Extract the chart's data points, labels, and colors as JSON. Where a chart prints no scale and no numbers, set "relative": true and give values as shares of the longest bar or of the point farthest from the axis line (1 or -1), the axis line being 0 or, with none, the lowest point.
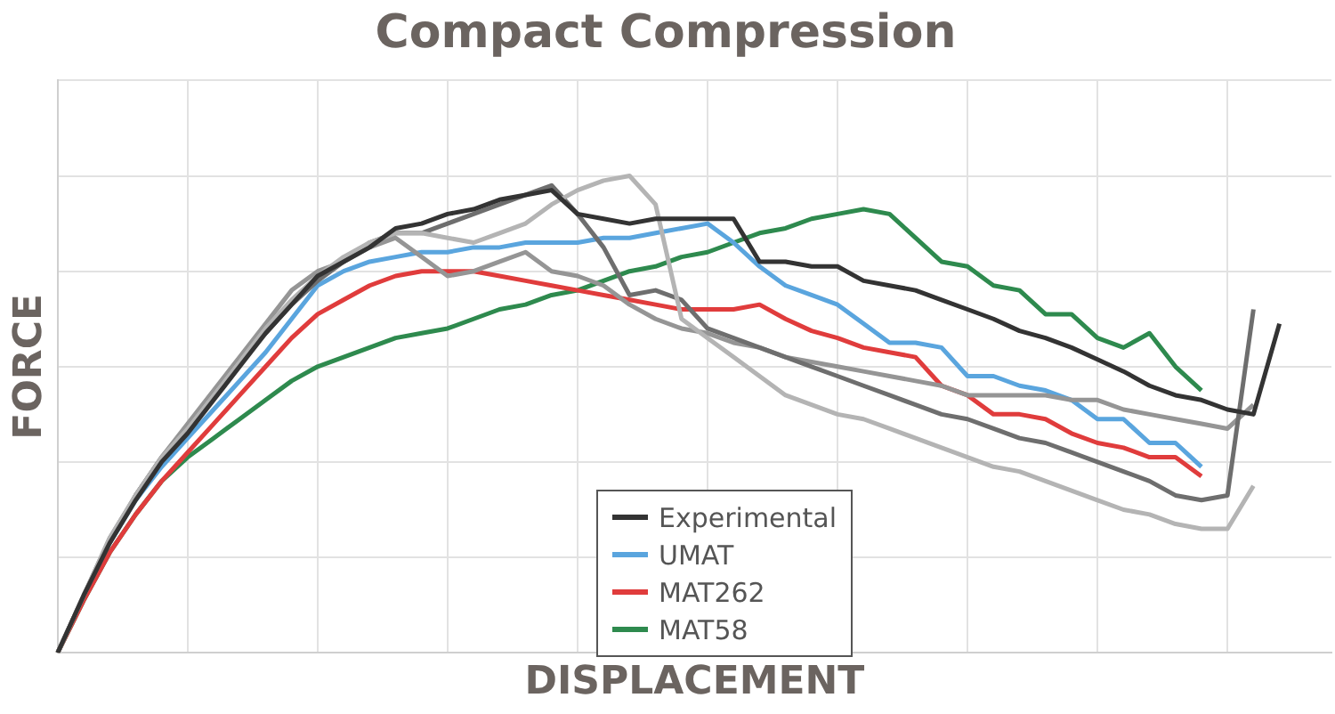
{
  "chart_data": {
    "type": "line",
    "title": "Compact Compression",
    "xlabel": "DISPLACEMENT",
    "ylabel": "FORCE",
    "relative": true,
    "grid": true,
    "legend": "bottom",
    "marker": "none",
    "line_style": "solid",
    "categories": [
      null,
      null,
      null,
      null,
      null,
      null,
      null,
      null,
      null,
      null,
      null,
      null,
      null,
      null,
      null,
      null,
      null,
      null,
      null,
      null,
      null,
      null,
      null,
      null,
      null,
      null,
      null,
      null,
      null,
      null,
      null,
      null,
      null,
      null,
      null,
      null,
      null,
      null,
      null,
      null,
      null,
      null,
      null,
      null,
      null,
      null,
      null,
      null,
      null,
      null
    ],
    "series": [
      {
        "name": "Experimental",
        "color": "#333333",
        "values": [
          0,
          0.12,
          0.23,
          0.32,
          0.4,
          0.46,
          0.53,
          0.6,
          0.67,
          0.73,
          0.79,
          0.82,
          0.85,
          0.89,
          0.9,
          0.92,
          0.93,
          0.95,
          0.96,
          0.97,
          0.92,
          0.91,
          0.9,
          0.91,
          0.91,
          0.91,
          0.91,
          0.82,
          0.82,
          0.81,
          0.81,
          0.78,
          0.77,
          0.76,
          0.74,
          0.72,
          0.7,
          0.675,
          0.66,
          0.64,
          0.615,
          0.59,
          0.56,
          0.54,
          0.53,
          0.51,
          0.5,
          0.69,
          null,
          null
        ]
      },
      {
        "color": "#b4b4b4",
        "values": [
          0,
          0.12,
          0.24,
          0.33,
          0.41,
          0.47,
          0.54,
          0.61,
          0.68,
          0.74,
          0.79,
          0.83,
          0.86,
          0.88,
          0.88,
          0.87,
          0.86,
          0.88,
          0.9,
          0.94,
          0.97,
          0.99,
          1,
          0.94,
          0.7,
          0.66,
          0.62,
          0.58,
          0.54,
          0.52,
          0.5,
          0.49,
          0.47,
          0.45,
          0.43,
          0.41,
          0.39,
          0.38,
          0.36,
          0.34,
          0.32,
          0.3,
          0.29,
          0.27,
          0.26,
          0.26,
          0.35,
          null,
          null,
          null
        ]
      },
      {
        "color": "#6e6e6e",
        "values": [
          0,
          0.12,
          0.23,
          0.33,
          0.41,
          0.47,
          0.54,
          0.61,
          0.67,
          0.73,
          0.78,
          0.82,
          0.86,
          0.88,
          0.88,
          0.9,
          0.92,
          0.94,
          0.96,
          0.98,
          0.92,
          0.85,
          0.75,
          0.76,
          0.74,
          0.68,
          0.66,
          0.64,
          0.62,
          0.6,
          0.58,
          0.56,
          0.54,
          0.52,
          0.5,
          0.49,
          0.47,
          0.45,
          0.44,
          0.42,
          0.4,
          0.38,
          0.36,
          0.33,
          0.32,
          0.33,
          0.72,
          null,
          null,
          null
        ]
      },
      {
        "color": "#959595",
        "values": [
          0,
          0.12,
          0.24,
          0.33,
          0.41,
          0.48,
          0.55,
          0.62,
          0.69,
          0.76,
          0.8,
          0.82,
          0.85,
          0.87,
          0.83,
          0.79,
          0.8,
          0.82,
          0.84,
          0.8,
          0.79,
          0.77,
          0.73,
          0.7,
          0.68,
          0.67,
          0.65,
          0.64,
          0.62,
          0.61,
          0.6,
          0.59,
          0.58,
          0.57,
          0.56,
          0.54,
          0.54,
          0.54,
          0.54,
          0.53,
          0.53,
          0.51,
          0.5,
          0.49,
          0.48,
          0.47,
          0.52,
          null,
          null,
          null
        ]
      },
      {
        "name": "UMAT",
        "color": "#5aa5de",
        "values": [
          null,
          null,
          0.23,
          0.32,
          0.39,
          0.45,
          0.51,
          0.57,
          0.63,
          0.7,
          0.77,
          0.8,
          0.82,
          0.83,
          0.84,
          0.84,
          0.85,
          0.85,
          0.86,
          0.86,
          0.86,
          0.87,
          0.87,
          0.88,
          0.89,
          0.9,
          0.86,
          0.81,
          0.77,
          0.75,
          0.73,
          0.69,
          0.65,
          0.65,
          0.64,
          0.58,
          0.58,
          0.56,
          0.55,
          0.53,
          0.49,
          0.49,
          0.44,
          0.44,
          0.39,
          null,
          null,
          null,
          null,
          null
        ]
      },
      {
        "name": "MAT262",
        "color": "#e03c3c",
        "values": [
          0,
          0.11,
          0.21,
          0.29,
          0.36,
          0.42,
          0.48,
          0.54,
          0.6,
          0.66,
          0.71,
          0.74,
          0.77,
          0.79,
          0.8,
          0.8,
          0.8,
          0.79,
          0.78,
          0.77,
          0.76,
          0.75,
          0.74,
          0.73,
          0.72,
          0.72,
          0.72,
          0.73,
          0.7,
          0.675,
          0.66,
          0.64,
          0.63,
          0.62,
          0.56,
          0.54,
          0.5,
          0.5,
          0.49,
          0.46,
          0.44,
          0.43,
          0.41,
          0.41,
          0.37,
          null,
          null,
          null,
          null,
          null
        ]
      },
      {
        "name": "MAT58",
        "color": "#2e8a4e",
        "values": [
          0,
          0.11,
          0.21,
          0.29,
          0.36,
          0.41,
          0.45,
          0.49,
          0.53,
          0.57,
          0.6,
          0.62,
          0.64,
          0.66,
          0.67,
          0.68,
          0.7,
          0.72,
          0.73,
          0.75,
          0.76,
          0.78,
          0.8,
          0.81,
          0.83,
          0.84,
          0.86,
          0.88,
          0.89,
          0.91,
          0.92,
          0.93,
          0.92,
          0.87,
          0.82,
          0.81,
          0.77,
          0.76,
          0.71,
          0.71,
          0.66,
          0.64,
          0.67,
          0.6,
          0.55,
          null,
          null,
          null,
          null,
          null
        ]
      }
    ]
  }
}
